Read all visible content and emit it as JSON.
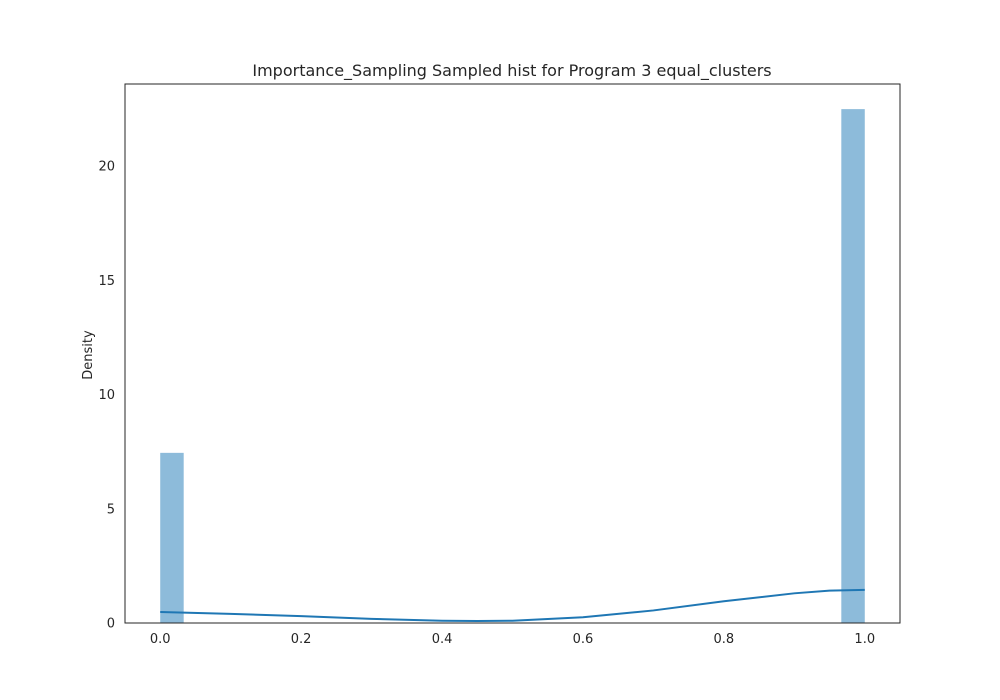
{
  "chart_data": {
    "type": "bar",
    "title": "Importance_Sampling Sampled hist for Program 3 equal_clusters",
    "xlabel": "",
    "ylabel": "Density",
    "xlim": [
      -0.05,
      1.05
    ],
    "ylim": [
      0,
      23.6
    ],
    "xticks": [
      "0.0",
      "0.2",
      "0.4",
      "0.6",
      "0.8",
      "1.0"
    ],
    "xtick_values": [
      0.0,
      0.2,
      0.4,
      0.6,
      0.8,
      1.0
    ],
    "yticks": [
      "0",
      "5",
      "10",
      "15",
      "20"
    ],
    "ytick_values": [
      0,
      5,
      10,
      15,
      20
    ],
    "grid": false,
    "bins": [
      {
        "x0": 0.0,
        "x1": 0.0333,
        "density": 7.45
      },
      {
        "x0": 0.9667,
        "x1": 1.0,
        "density": 22.5
      }
    ],
    "kde": {
      "x": [
        0.0,
        0.1,
        0.2,
        0.3,
        0.4,
        0.45,
        0.5,
        0.6,
        0.7,
        0.8,
        0.9,
        0.95,
        1.0
      ],
      "y": [
        0.48,
        0.4,
        0.3,
        0.18,
        0.1,
        0.09,
        0.1,
        0.25,
        0.55,
        0.95,
        1.3,
        1.42,
        1.45
      ]
    },
    "colors": {
      "bar": "#8dbbda",
      "bar_edge": "#8dbbda",
      "kde": "#1f77b4",
      "axes": "#262626"
    }
  }
}
